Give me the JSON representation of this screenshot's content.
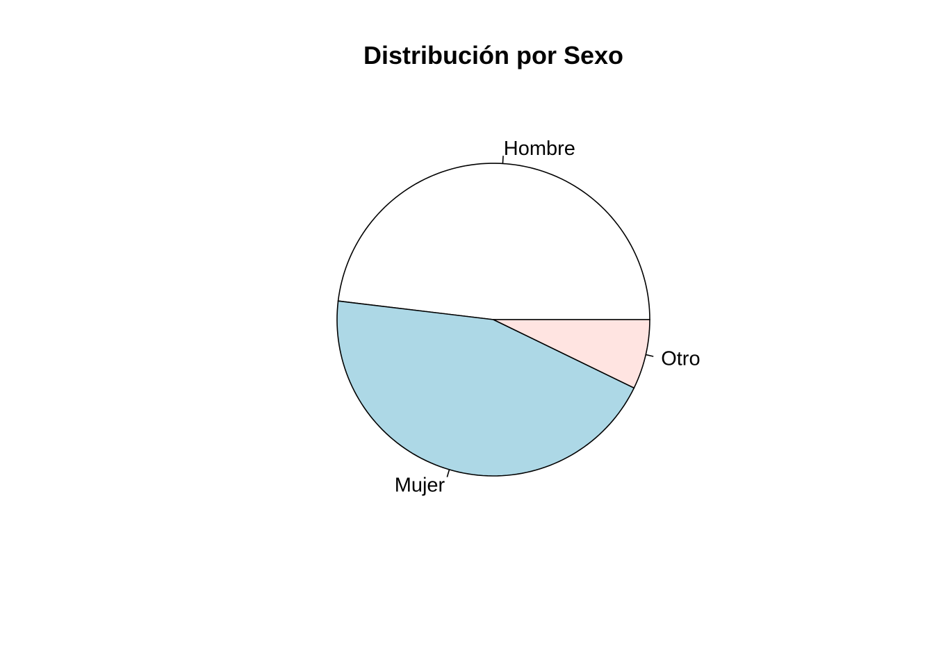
{
  "chart_data": {
    "type": "pie",
    "title": "Distribución por Sexo",
    "categories": [
      "Hombre",
      "Mujer",
      "Otro"
    ],
    "values": [
      48.1,
      44.7,
      7.2
    ],
    "colors": [
      "#FFFFFF",
      "#ADD8E6",
      "#FFE4E1"
    ],
    "start_angle_deg": 0,
    "direction": "counterclockwise",
    "border_color": "#000000"
  }
}
